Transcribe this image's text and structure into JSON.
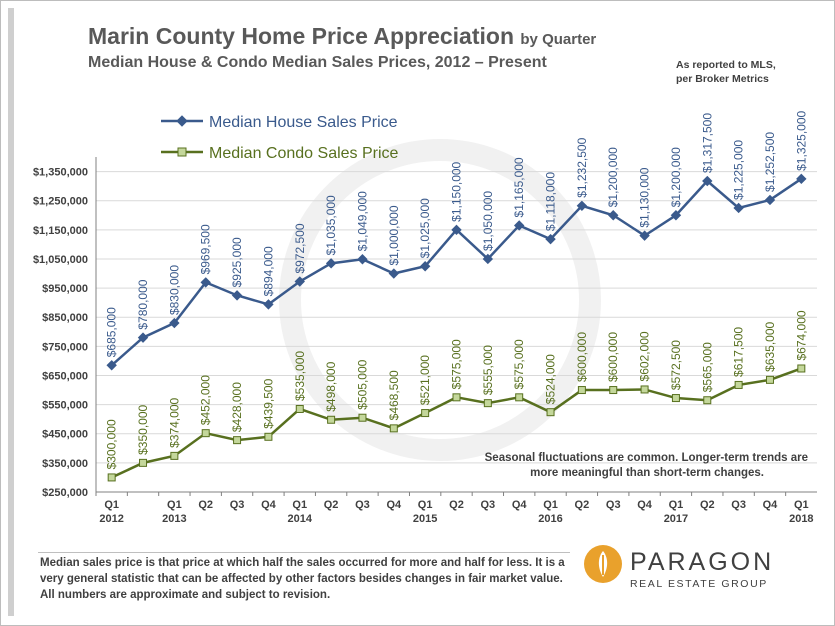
{
  "header": {
    "title_main": "Marin County Home Price Appreciation",
    "title_suffix": "by Quarter",
    "subtitle": "Median House & Condo Median Sales Prices, 2012 – Present",
    "source_line1": "As reported to MLS,",
    "source_line2": "per Broker Metrics"
  },
  "footnote": "Median sales price is that price at which half the sales occurred for more and half for less. It is a very general statistic that can be affected by other factors besides changes in fair market value. All numbers are approximate and subject to revision.",
  "logo": {
    "name": "PARAGON",
    "tagline": "REAL ESTATE GROUP"
  },
  "colors": {
    "house": "#3a5a8c",
    "condo": "#58701f",
    "condo_marker_fill": "#c4d79b",
    "grid": "#d9d9d9",
    "axis_text": "#404040"
  },
  "chart_data": {
    "type": "line",
    "x": [
      [
        "Q1",
        "2012"
      ],
      [
        "",
        ""
      ],
      [
        "Q1",
        "2013"
      ],
      [
        "Q2",
        ""
      ],
      [
        "Q3",
        ""
      ],
      [
        "Q4",
        ""
      ],
      [
        "Q1",
        "2014"
      ],
      [
        "Q2",
        ""
      ],
      [
        "Q3",
        ""
      ],
      [
        "Q4",
        ""
      ],
      [
        "Q1",
        "2015"
      ],
      [
        "Q2",
        ""
      ],
      [
        "Q3",
        ""
      ],
      [
        "Q4",
        ""
      ],
      [
        "Q1",
        "2016"
      ],
      [
        "Q2",
        ""
      ],
      [
        "Q3",
        ""
      ],
      [
        "Q4",
        ""
      ],
      [
        "Q1",
        "2017"
      ],
      [
        "Q2",
        ""
      ],
      [
        "Q3",
        ""
      ],
      [
        "Q4",
        ""
      ],
      [
        "Q1",
        "2018"
      ]
    ],
    "series": [
      {
        "name": "Median House Sales Price",
        "values": [
          685000,
          780000,
          830000,
          969500,
          925000,
          894000,
          972500,
          1035000,
          1049000,
          1000000,
          1025000,
          1150000,
          1050000,
          1165000,
          1118000,
          1232500,
          1200000,
          1130000,
          1200000,
          1317500,
          1225000,
          1252500,
          1325000
        ],
        "labels": [
          "$685,000",
          "$780,000",
          "$830,000",
          "$969,500",
          "$925,000",
          "$894,000",
          "$972,500",
          "$1,035,000",
          "$1,049,000",
          "$1,000,000",
          "$1,025,000",
          "$1,150,000",
          "$1,050,000",
          "$1,165,000",
          "$1,118,000",
          "$1,232,500",
          "$1,200,000",
          "$1,130,000",
          "$1,200,000",
          "$1,317,500",
          "$1,225,000",
          "$1,252,500",
          "$1,325,000"
        ]
      },
      {
        "name": "Median Condo Sales Price",
        "values": [
          300000,
          350000,
          374000,
          452000,
          428000,
          439500,
          535000,
          498000,
          505000,
          468500,
          521000,
          575000,
          555000,
          575000,
          524000,
          600000,
          600000,
          602000,
          572500,
          565000,
          617500,
          635000,
          674000
        ],
        "labels": [
          "$300,000",
          "$350,000",
          "$374,000",
          "$452,000",
          "$428,000",
          "$439,500",
          "$535,000",
          "$498,000",
          "$505,000",
          "$468,500",
          "$521,000",
          "$575,000",
          "$555,000",
          "$575,000",
          "$524,000",
          "$600,000",
          "$600,000",
          "$602,000",
          "$572,500",
          "$565,000",
          "$617,500",
          "$635,000",
          "$674,000"
        ]
      }
    ],
    "yticks": [
      "$250,000",
      "$350,000",
      "$450,000",
      "$550,000",
      "$650,000",
      "$750,000",
      "$850,000",
      "$950,000",
      "$1,050,000",
      "$1,150,000",
      "$1,250,000",
      "$1,350,000"
    ],
    "ylim": [
      250000,
      1350000
    ],
    "ylim_top": 1400000,
    "grid": "horizontal",
    "legend": "top-left",
    "annotation_line1": "Seasonal fluctuations are common. Longer-term trends are",
    "annotation_line2": "more meaningful than short-term changes."
  }
}
